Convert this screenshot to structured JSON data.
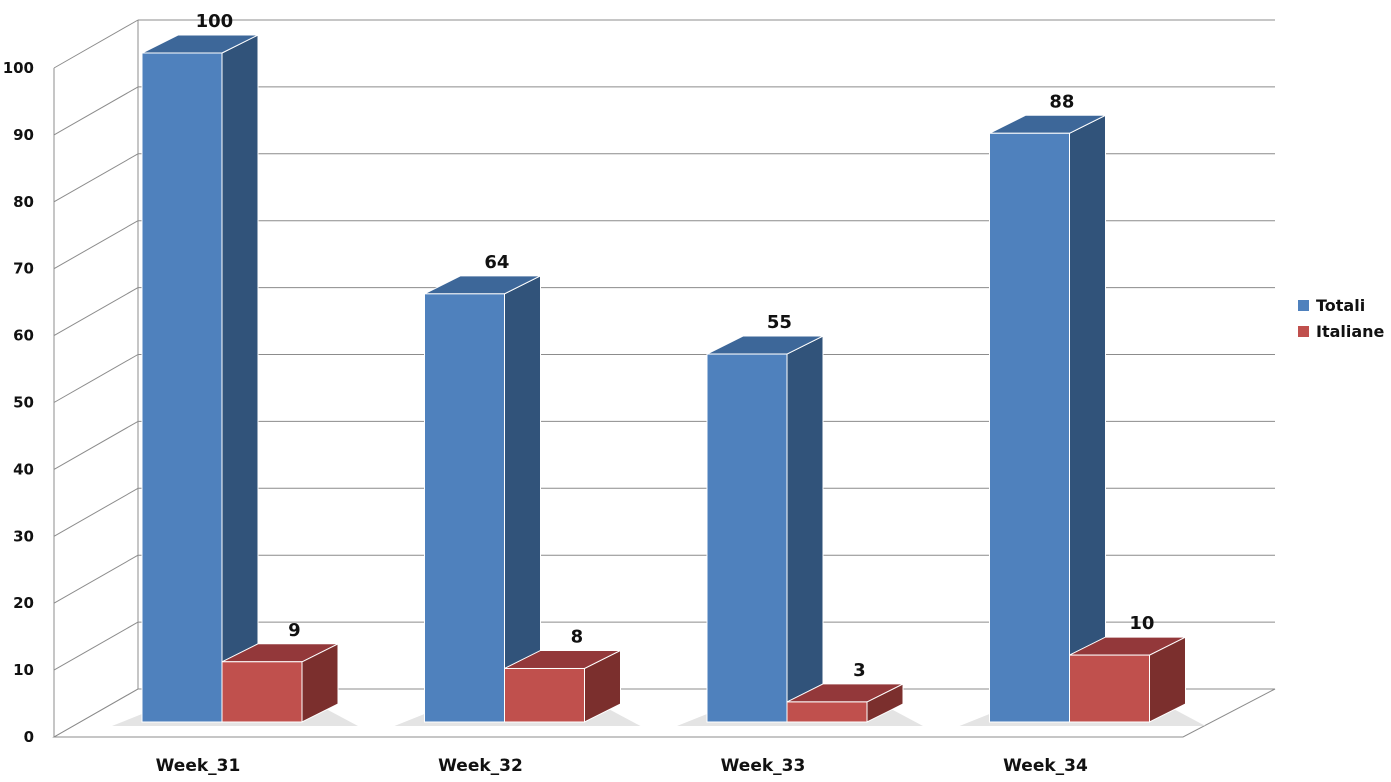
{
  "chart_data": {
    "type": "bar",
    "categories": [
      "Week_31",
      "Week_32",
      "Week_33",
      "Week_34"
    ],
    "series": [
      {
        "name": "Totali",
        "values": [
          100,
          64,
          55,
          88
        ],
        "color": "#4F81BD",
        "side_color": "#31537A",
        "top_color": "#3D6799"
      },
      {
        "name": "Italiane",
        "values": [
          9,
          8,
          3,
          10
        ],
        "color": "#C0504D",
        "side_color": "#7B2F2D",
        "top_color": "#93383A"
      }
    ],
    "ylim": [
      0,
      100
    ],
    "yticks": [
      0,
      10,
      20,
      30,
      40,
      50,
      60,
      70,
      80,
      90,
      100
    ],
    "title": "",
    "xlabel": "",
    "ylabel": "",
    "grid": true,
    "projection": "3d",
    "legend_position": "right"
  }
}
